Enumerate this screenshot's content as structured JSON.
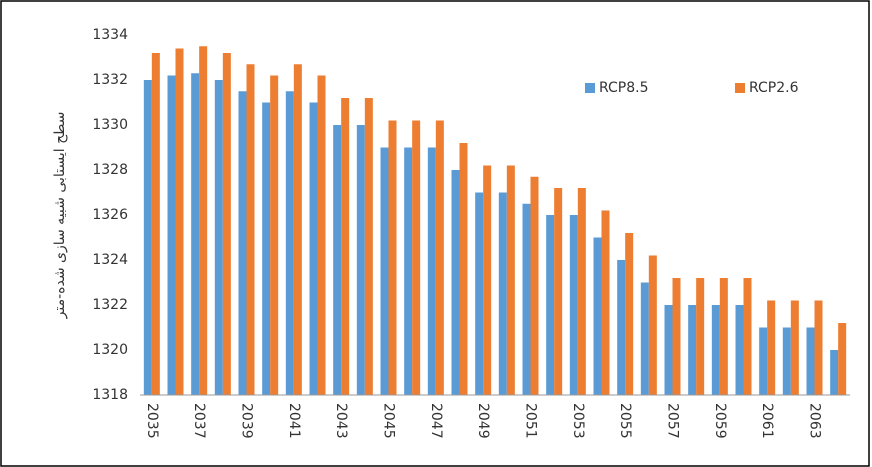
{
  "chart_data": {
    "type": "bar",
    "y_label": "سطح ایستابی شبیه سازی شده-متر",
    "categories": [
      "2035",
      null,
      "2037",
      null,
      "2039",
      null,
      "2041",
      null,
      "2043",
      null,
      "2045",
      null,
      "2047",
      null,
      "2049",
      null,
      "2051",
      null,
      "2053",
      null,
      "2055",
      null,
      "2057",
      null,
      "2059",
      null,
      "2061",
      null,
      "2063",
      null
    ],
    "series": [
      {
        "name": "RCP8.5",
        "color": "#5b9bd5",
        "values": [
          1332,
          1332.2,
          1332.3,
          1332,
          1331.5,
          1331,
          1331.5,
          1331,
          1330,
          1330,
          1329,
          1329,
          1329,
          1328,
          1327,
          1327,
          1326.5,
          1326,
          1326,
          1325,
          1324,
          1323,
          1322,
          1322,
          1322,
          1322,
          1321,
          1321,
          1321,
          1320
        ]
      },
      {
        "name": "RCP2.6",
        "color": "#ed7d31",
        "values": [
          1333.2,
          1333.4,
          1333.5,
          1333.2,
          1332.7,
          1332.2,
          1332.7,
          1332.2,
          1331.2,
          1331.2,
          1330.2,
          1330.2,
          1330.2,
          1329.2,
          1328.2,
          1328.2,
          1327.7,
          1327.2,
          1327.2,
          1326.2,
          1325.2,
          1324.2,
          1323.2,
          1323.2,
          1323.2,
          1323.2,
          1322.2,
          1322.2,
          1322.2,
          1321.2
        ]
      }
    ],
    "ylim": [
      1318,
      1334
    ],
    "yticks": [
      1318,
      1320,
      1322,
      1324,
      1326,
      1328,
      1330,
      1332,
      1334
    ],
    "legend": "upper right",
    "grid": false
  }
}
